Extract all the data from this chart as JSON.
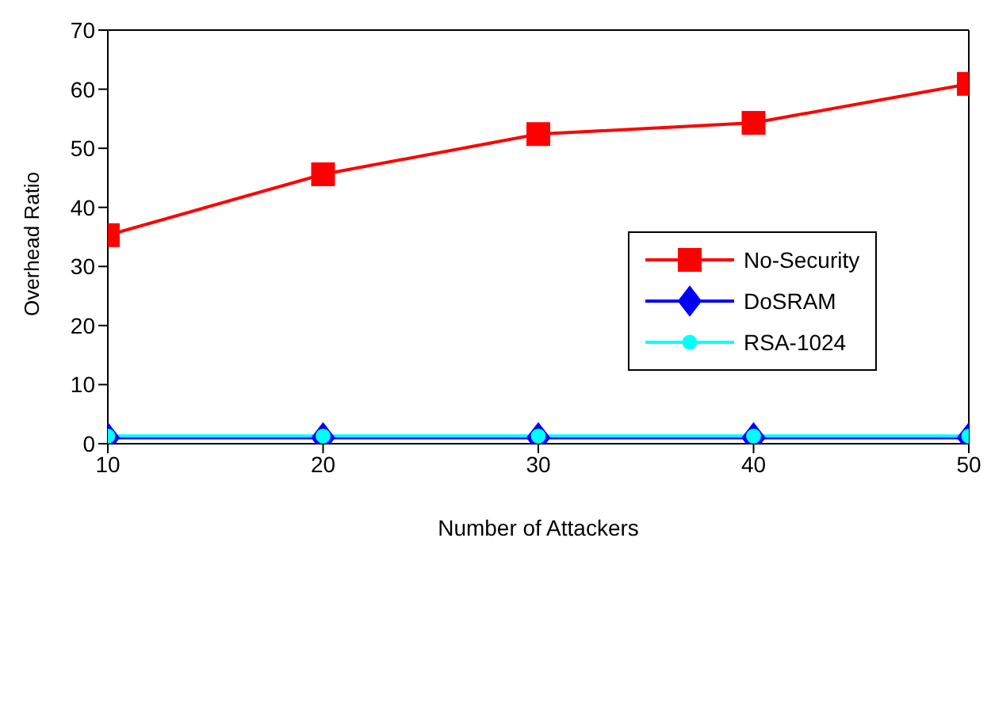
{
  "chart_data": {
    "type": "line",
    "xlabel": "Number of Attackers",
    "ylabel": "Overhead Ratio",
    "x": [
      10,
      20,
      30,
      40,
      50
    ],
    "xlim": [
      10,
      50
    ],
    "xticks": [
      10,
      20,
      30,
      40,
      50
    ],
    "ylim": [
      0,
      70
    ],
    "yticks": [
      0,
      10,
      20,
      30,
      40,
      50,
      60,
      70
    ],
    "grid": false,
    "legend": "right",
    "series": [
      {
        "name": "No-Security",
        "color": "#ff0000",
        "marker": "square",
        "values": [
          35.3,
          45.6,
          52.4,
          54.3,
          60.9
        ]
      },
      {
        "name": "DoSRAM",
        "color": "#0000ff",
        "marker": "diamond",
        "values": [
          1.0,
          1.0,
          1.0,
          1.0,
          1.0
        ]
      },
      {
        "name": "RSA-1024",
        "color": "#00ffff",
        "marker": "circle",
        "values": [
          1.3,
          1.3,
          1.3,
          1.3,
          1.3
        ]
      }
    ]
  }
}
